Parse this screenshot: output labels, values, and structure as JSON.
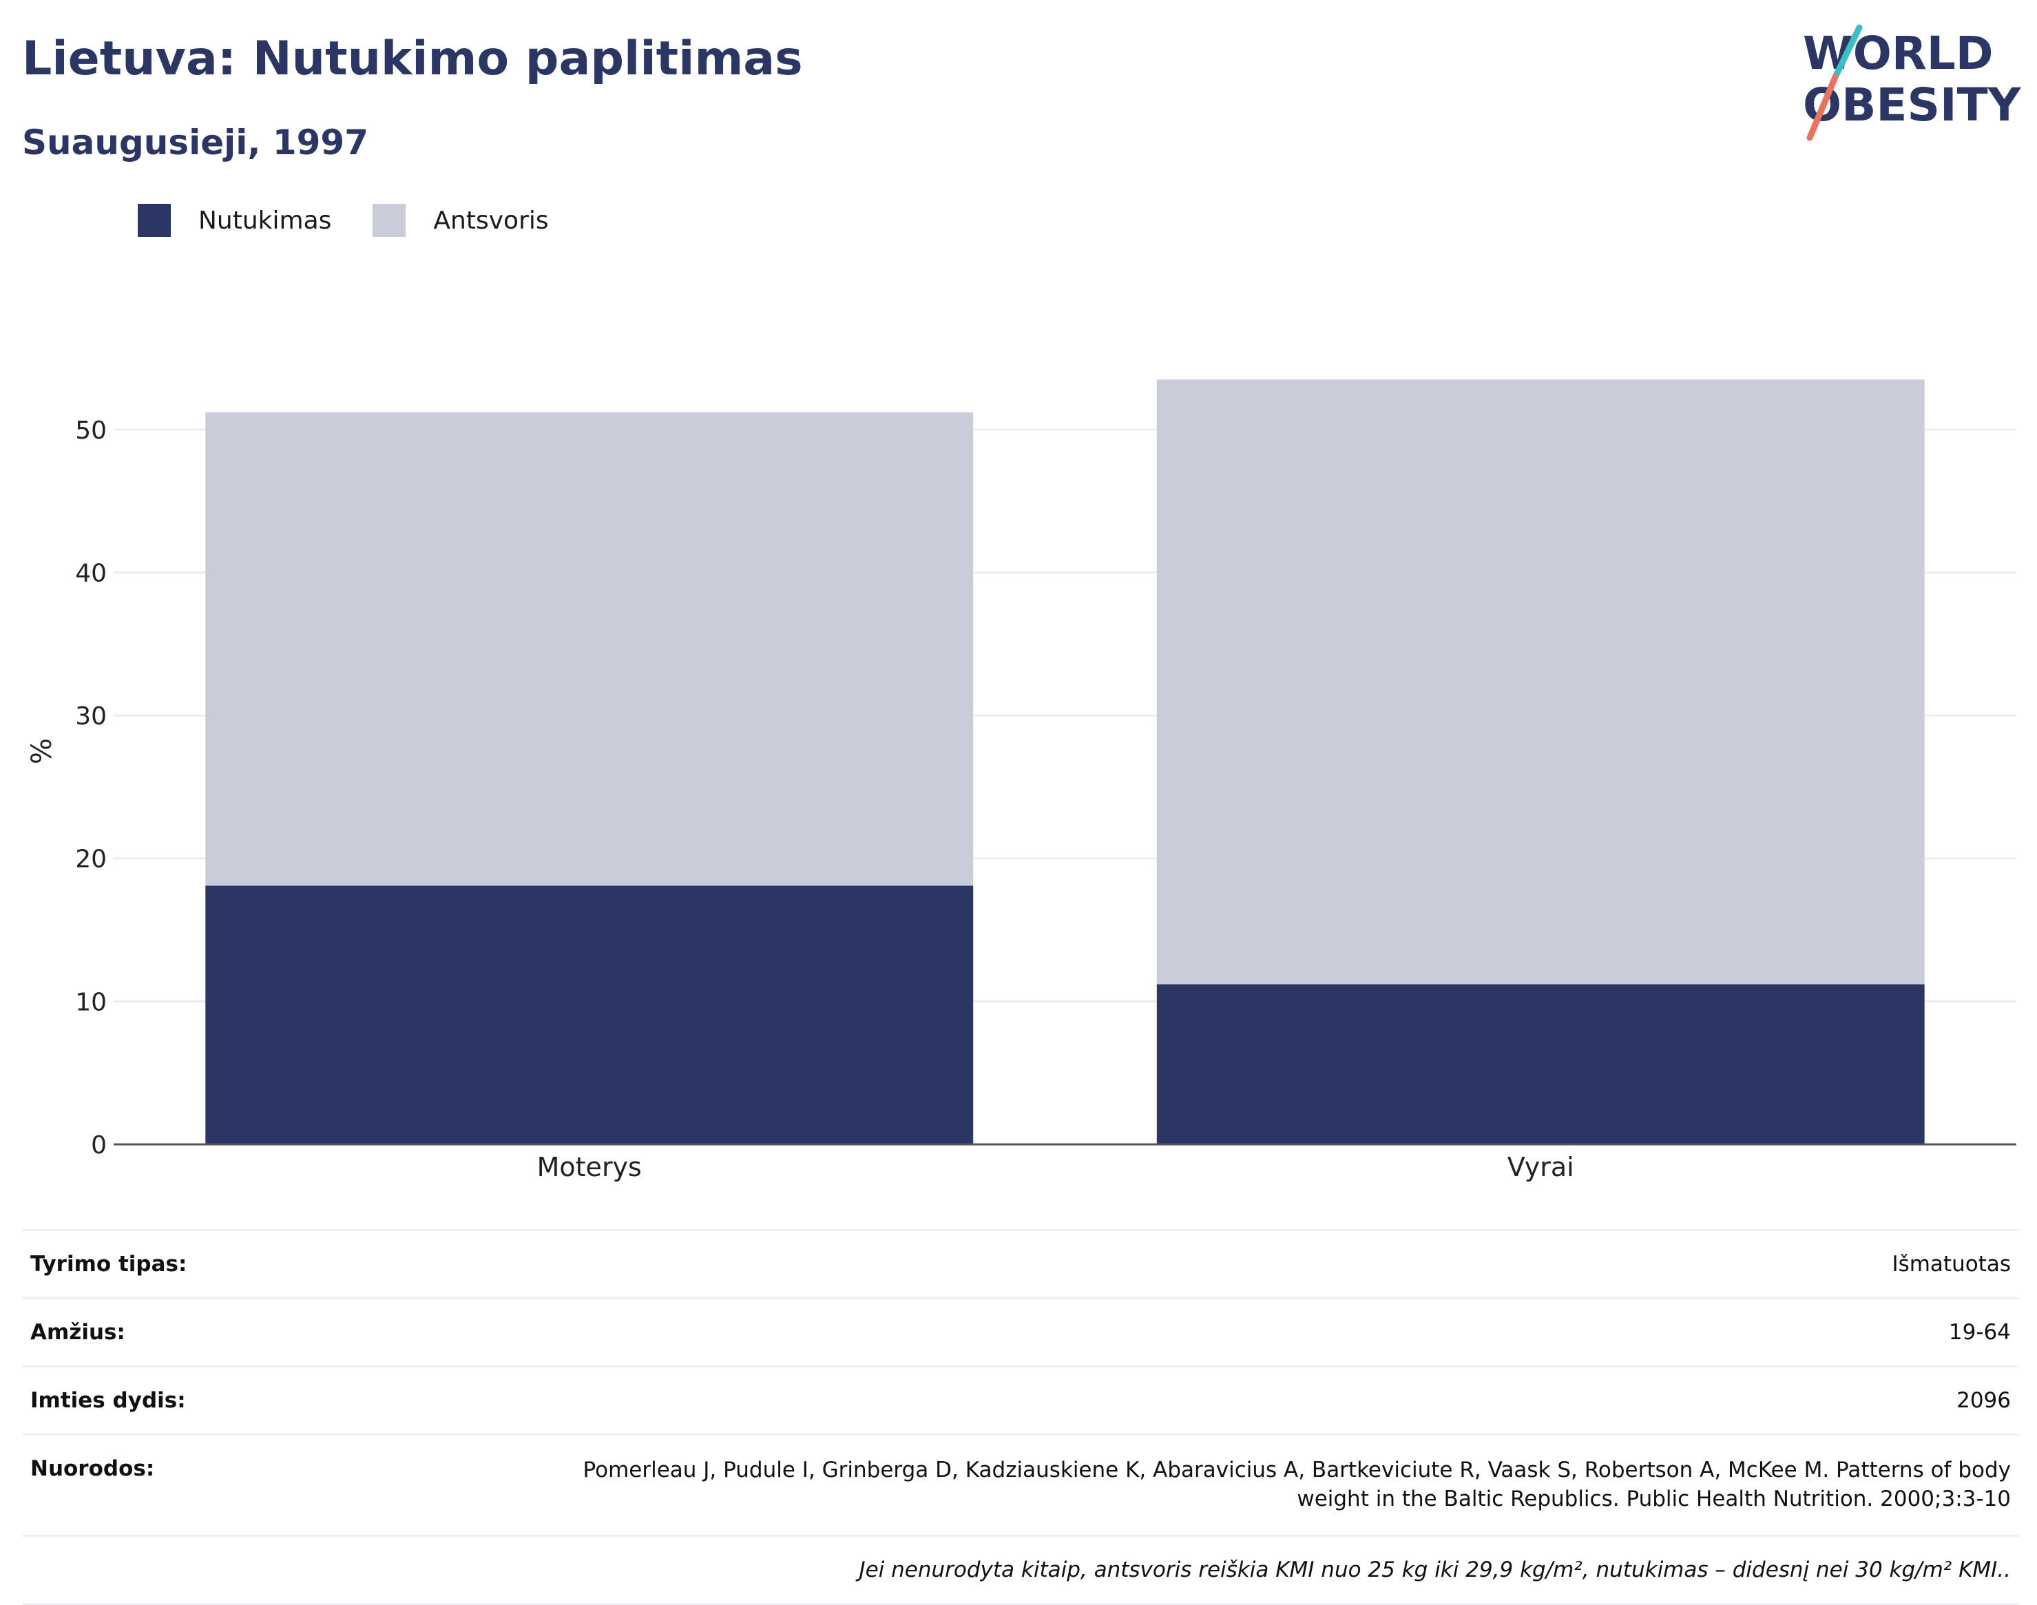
{
  "header": {
    "title": "Lietuva: Nutukimo paplitimas",
    "subtitle": "Suaugusieji, 1997"
  },
  "logo": {
    "line1": "WORLD",
    "line2": "OBESITY"
  },
  "colors": {
    "obesity": "#2b3664",
    "overweight": "#cacdd9",
    "text": "#2b3664",
    "accent_teal": "#3bbfc4",
    "accent_red": "#e8735e"
  },
  "legend": [
    {
      "label": "Nutukimas",
      "color": "#2b3664"
    },
    {
      "label": "Antsvoris",
      "color": "#cacdd9"
    }
  ],
  "chart_data": {
    "type": "bar",
    "stacked": true,
    "categories": [
      "Moterys",
      "Vyrai"
    ],
    "series": [
      {
        "name": "Nutukimas",
        "values": [
          18.1,
          11.2
        ]
      },
      {
        "name": "Antsvoris",
        "values": [
          33.1,
          42.3
        ]
      }
    ],
    "ylabel": "%",
    "ylim": [
      0,
      55
    ],
    "yticks": [
      0,
      10,
      20,
      30,
      40,
      50
    ],
    "grid": true,
    "legend_position": "top-left"
  },
  "info": {
    "rows": [
      {
        "label": "Tyrimo tipas:",
        "value": "Išmatuotas"
      },
      {
        "label": "Amžius:",
        "value": "19-64"
      },
      {
        "label": "Imties dydis:",
        "value": "2096"
      },
      {
        "label": "Nuorodos:",
        "value": "Pomerleau J, Pudule I, Grinberga D, Kadziauskiene K, Abaravicius A, Bartkeviciute R, Vaask S, Robertson A, McKee M. Patterns of body weight in the Baltic Republics. Public Health Nutrition. 2000;3:3-10"
      }
    ],
    "note": "Jei nenurodyta kitaip, antsvoris reiškia KMI nuo 25 kg iki 29,9 kg/m², nutukimas – didesnį nei 30 kg/m² KMI.."
  }
}
